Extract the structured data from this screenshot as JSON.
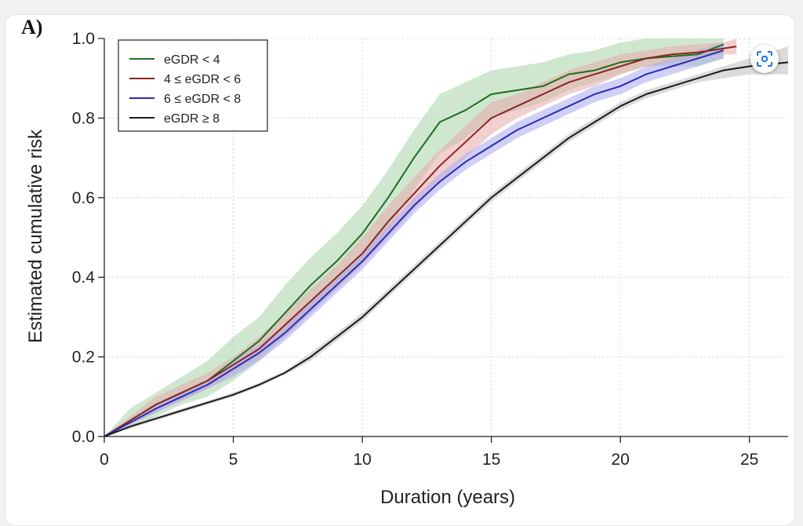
{
  "panel_label": "A)",
  "colors": {
    "green": "#1e6e1e",
    "red": "#8b2424",
    "blue": "#2a2ab8",
    "black": "#1a1a1a",
    "lens_accent": "#1a73e8"
  },
  "overlay": {
    "icon": "lens-search-icon"
  },
  "chart_data": {
    "type": "line",
    "title": "",
    "xlabel": "Duration (years)",
    "ylabel": "Estimated cumulative risk",
    "xlim": [
      0,
      26.5
    ],
    "ylim": [
      0,
      1.0
    ],
    "xticks": [
      "0",
      "5",
      "10",
      "15",
      "20",
      "25"
    ],
    "yticks": [
      "0.0",
      "0.2",
      "0.4",
      "0.6",
      "0.8",
      "1.0"
    ],
    "grid": true,
    "legend_position": "top-left",
    "series": [
      {
        "name": "eGDR < 4",
        "color": "#1e6e1e",
        "band_color": "#a8d4a8",
        "x": [
          0,
          1,
          2,
          3,
          4,
          5,
          6,
          7,
          8,
          9,
          10,
          11,
          12,
          13,
          14,
          15,
          16,
          17,
          18,
          19,
          20,
          21,
          22,
          23,
          24
        ],
        "y": [
          0,
          0.04,
          0.08,
          0.11,
          0.14,
          0.19,
          0.24,
          0.31,
          0.38,
          0.44,
          0.51,
          0.6,
          0.7,
          0.79,
          0.82,
          0.86,
          0.87,
          0.88,
          0.91,
          0.92,
          0.94,
          0.95,
          0.955,
          0.96,
          0.985
        ],
        "lower": [
          0,
          0.02,
          0.05,
          0.08,
          0.1,
          0.14,
          0.19,
          0.25,
          0.31,
          0.37,
          0.44,
          0.52,
          0.62,
          0.71,
          0.75,
          0.8,
          0.82,
          0.84,
          0.87,
          0.89,
          0.91,
          0.93,
          0.93,
          0.93,
          0.95
        ],
        "upper": [
          0,
          0.07,
          0.11,
          0.15,
          0.19,
          0.25,
          0.3,
          0.38,
          0.45,
          0.51,
          0.58,
          0.67,
          0.77,
          0.86,
          0.89,
          0.92,
          0.93,
          0.94,
          0.96,
          0.97,
          0.99,
          1.0,
          1.0,
          1.0,
          1.0
        ]
      },
      {
        "name": "4 ≤ eGDR < 6",
        "color": "#8b2424",
        "band_color": "#e7a9a9",
        "x": [
          0,
          1,
          2,
          3,
          4,
          5,
          6,
          7,
          8,
          9,
          10,
          11,
          12,
          13,
          14,
          15,
          16,
          17,
          18,
          19,
          20,
          21,
          22,
          23,
          24,
          24.5
        ],
        "y": [
          0,
          0.04,
          0.08,
          0.11,
          0.14,
          0.18,
          0.22,
          0.28,
          0.34,
          0.4,
          0.46,
          0.54,
          0.61,
          0.68,
          0.74,
          0.8,
          0.83,
          0.86,
          0.89,
          0.91,
          0.93,
          0.95,
          0.96,
          0.965,
          0.975,
          0.98
        ],
        "lower": [
          0,
          0.03,
          0.06,
          0.09,
          0.12,
          0.16,
          0.2,
          0.25,
          0.31,
          0.37,
          0.43,
          0.5,
          0.57,
          0.64,
          0.7,
          0.76,
          0.8,
          0.83,
          0.86,
          0.88,
          0.91,
          0.93,
          0.94,
          0.95,
          0.96,
          0.96
        ],
        "upper": [
          0,
          0.05,
          0.1,
          0.13,
          0.16,
          0.2,
          0.25,
          0.31,
          0.37,
          0.43,
          0.5,
          0.58,
          0.65,
          0.72,
          0.78,
          0.84,
          0.86,
          0.89,
          0.92,
          0.94,
          0.96,
          0.97,
          0.98,
          0.985,
          0.99,
          1.0
        ]
      },
      {
        "name": "6 ≤ eGDR < 8",
        "color": "#2a2ab8",
        "band_color": "#a9a9ee",
        "x": [
          0,
          1,
          2,
          3,
          4,
          5,
          6,
          7,
          8,
          9,
          10,
          11,
          12,
          13,
          14,
          15,
          16,
          17,
          18,
          19,
          20,
          21,
          22,
          23,
          24
        ],
        "y": [
          0,
          0.035,
          0.07,
          0.1,
          0.13,
          0.17,
          0.21,
          0.26,
          0.32,
          0.38,
          0.44,
          0.51,
          0.58,
          0.64,
          0.69,
          0.73,
          0.77,
          0.8,
          0.83,
          0.86,
          0.88,
          0.91,
          0.93,
          0.95,
          0.97
        ],
        "lower": [
          0,
          0.03,
          0.06,
          0.09,
          0.12,
          0.15,
          0.19,
          0.24,
          0.3,
          0.36,
          0.42,
          0.49,
          0.56,
          0.62,
          0.67,
          0.71,
          0.75,
          0.78,
          0.81,
          0.84,
          0.86,
          0.89,
          0.91,
          0.93,
          0.95
        ],
        "upper": [
          0,
          0.04,
          0.08,
          0.11,
          0.14,
          0.19,
          0.23,
          0.28,
          0.34,
          0.4,
          0.46,
          0.53,
          0.6,
          0.66,
          0.71,
          0.75,
          0.79,
          0.82,
          0.85,
          0.88,
          0.9,
          0.93,
          0.95,
          0.97,
          0.99
        ]
      },
      {
        "name": "eGDR ≥ 8",
        "color": "#1a1a1a",
        "band_color": "#bdbdbd",
        "x": [
          0,
          1,
          2,
          3,
          4,
          5,
          6,
          7,
          8,
          9,
          10,
          11,
          12,
          13,
          14,
          15,
          16,
          17,
          18,
          19,
          20,
          21,
          22,
          23,
          24,
          25,
          26.5
        ],
        "y": [
          0,
          0.025,
          0.045,
          0.065,
          0.085,
          0.105,
          0.13,
          0.16,
          0.2,
          0.25,
          0.3,
          0.36,
          0.42,
          0.48,
          0.54,
          0.6,
          0.65,
          0.7,
          0.75,
          0.79,
          0.83,
          0.86,
          0.88,
          0.9,
          0.92,
          0.93,
          0.94
        ],
        "lower": [
          0,
          0.02,
          0.04,
          0.06,
          0.08,
          0.1,
          0.125,
          0.155,
          0.19,
          0.24,
          0.29,
          0.35,
          0.41,
          0.47,
          0.53,
          0.59,
          0.64,
          0.69,
          0.74,
          0.78,
          0.82,
          0.85,
          0.87,
          0.89,
          0.9,
          0.91,
          0.91
        ],
        "upper": [
          0,
          0.03,
          0.05,
          0.07,
          0.09,
          0.11,
          0.135,
          0.165,
          0.21,
          0.26,
          0.31,
          0.37,
          0.43,
          0.49,
          0.55,
          0.61,
          0.66,
          0.71,
          0.76,
          0.8,
          0.84,
          0.87,
          0.89,
          0.91,
          0.93,
          0.95,
          0.98
        ]
      }
    ]
  }
}
